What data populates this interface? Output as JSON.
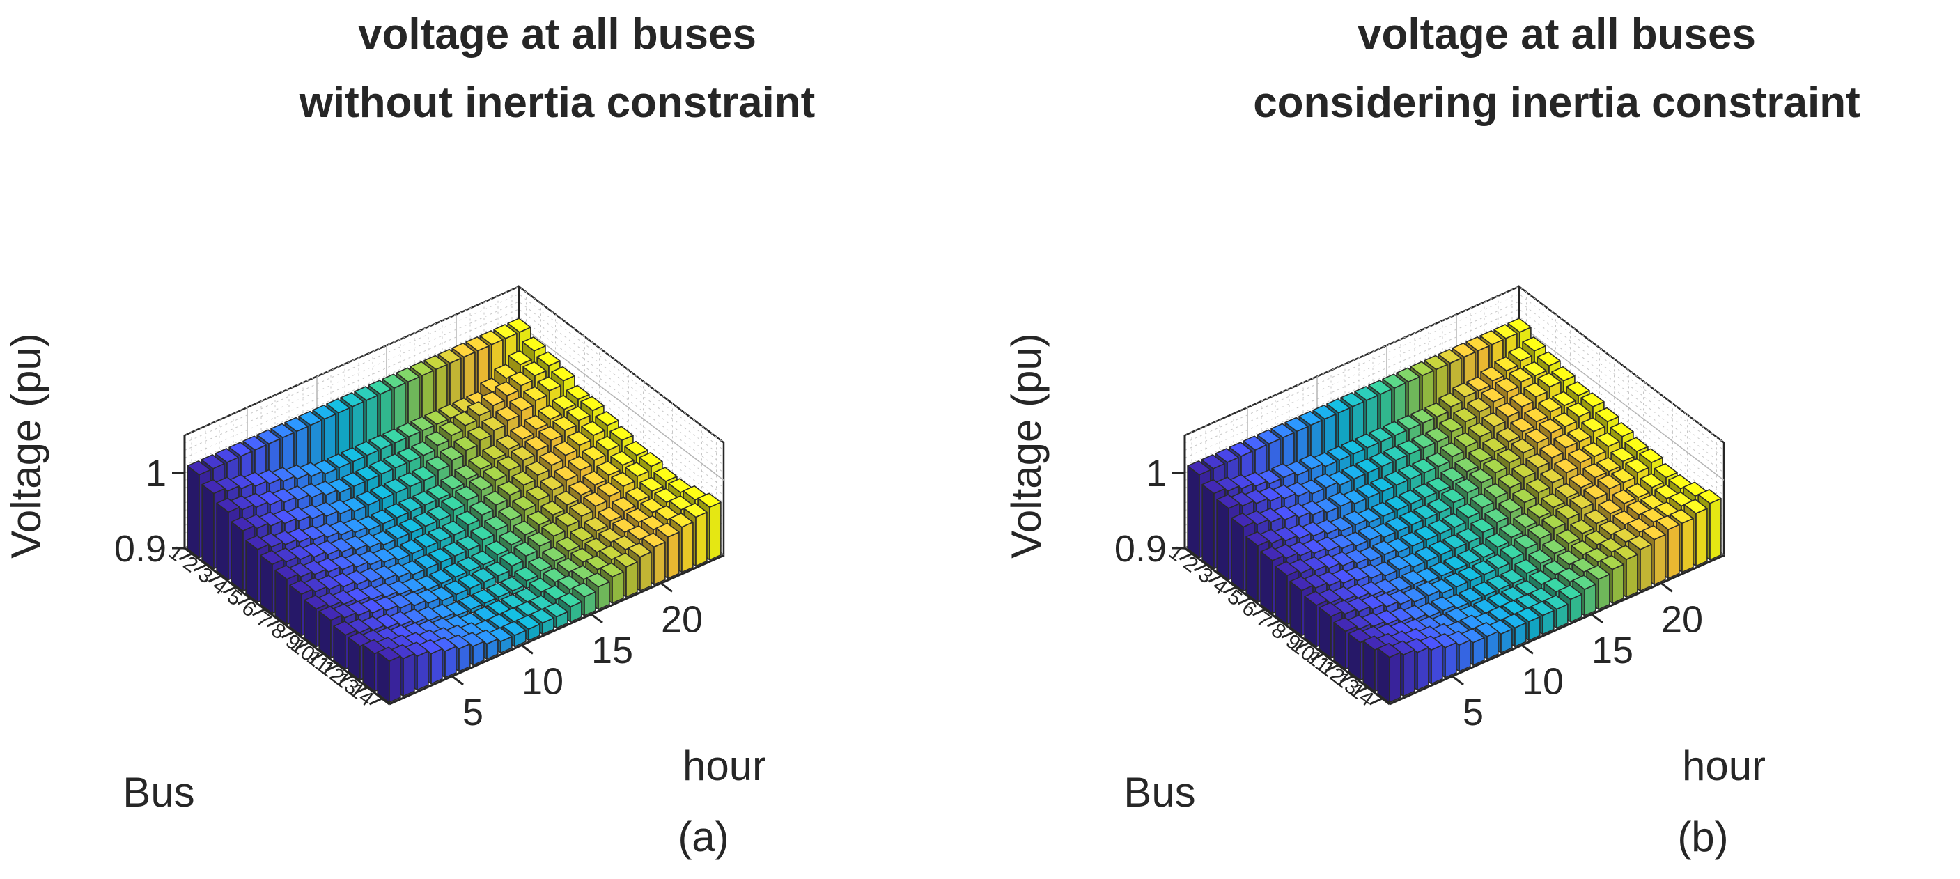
{
  "chart_data": [
    {
      "type": "bar3",
      "title": [
        "voltage at all buses",
        "without inertia constraint"
      ],
      "caption": "(a)",
      "xlabel": "hour",
      "ylabel": "Bus",
      "zlabel": "Voltage (pu)",
      "hours": [
        1,
        2,
        3,
        4,
        5,
        6,
        7,
        8,
        9,
        10,
        11,
        12,
        13,
        14,
        15,
        16,
        17,
        18,
        19,
        20,
        21,
        22,
        23,
        24
      ],
      "buses": [
        1,
        2,
        3,
        4,
        5,
        6,
        7,
        8,
        9,
        10,
        11,
        12,
        13,
        14
      ],
      "x_ticks": [
        5,
        10,
        15,
        20
      ],
      "z_ticks": [
        0.9,
        1
      ],
      "z_tick_labels": [
        "0.9",
        "1"
      ],
      "bus_tick_labels": [
        "1",
        "2",
        "3",
        "4",
        "5",
        "6",
        "7",
        "8",
        "9",
        "10",
        "11",
        "12",
        "13",
        "14"
      ],
      "zlim": [
        0.9,
        1.05
      ],
      "colormap": "parula (by hour)",
      "voltage": [
        [
          1.01,
          1.01,
          1.01,
          1.01,
          1.01,
          1.01,
          1.01,
          1.01,
          1.01,
          1.01,
          1.01,
          1.01,
          1.01,
          1.01,
          1.01,
          1.01,
          1.01,
          1.01,
          1.01,
          1.01,
          1.01,
          1.01,
          1.01,
          1.01
        ],
        [
          1.0,
          0.995,
          0.99,
          0.985,
          0.98,
          0.975,
          0.97,
          0.965,
          0.96,
          0.96,
          0.96,
          0.96,
          0.96,
          0.96,
          0.96,
          0.96,
          0.96,
          0.96,
          0.96,
          0.96,
          0.97,
          0.98,
          0.99,
          1.0
        ],
        [
          0.99,
          0.985,
          0.98,
          0.975,
          0.97,
          0.965,
          0.96,
          0.955,
          0.95,
          0.95,
          0.95,
          0.95,
          0.95,
          0.95,
          0.95,
          0.955,
          0.96,
          0.965,
          0.97,
          0.975,
          0.98,
          0.985,
          0.99,
          0.995
        ],
        [
          0.98,
          0.975,
          0.97,
          0.965,
          0.96,
          0.955,
          0.95,
          0.945,
          0.94,
          0.94,
          0.94,
          0.94,
          0.94,
          0.94,
          0.945,
          0.95,
          0.955,
          0.96,
          0.965,
          0.97,
          0.975,
          0.98,
          0.985,
          0.99
        ],
        [
          0.97,
          0.965,
          0.96,
          0.955,
          0.95,
          0.945,
          0.94,
          0.935,
          0.93,
          0.93,
          0.93,
          0.93,
          0.93,
          0.93,
          0.935,
          0.94,
          0.945,
          0.95,
          0.955,
          0.96,
          0.965,
          0.97,
          0.975,
          0.98
        ],
        [
          0.965,
          0.96,
          0.955,
          0.95,
          0.945,
          0.94,
          0.935,
          0.93,
          0.925,
          0.925,
          0.925,
          0.925,
          0.925,
          0.93,
          0.935,
          0.94,
          0.945,
          0.95,
          0.955,
          0.96,
          0.965,
          0.97,
          0.975,
          0.98
        ],
        [
          0.96,
          0.955,
          0.95,
          0.945,
          0.94,
          0.935,
          0.93,
          0.925,
          0.92,
          0.92,
          0.92,
          0.92,
          0.92,
          0.925,
          0.93,
          0.935,
          0.94,
          0.945,
          0.95,
          0.955,
          0.96,
          0.965,
          0.97,
          0.975
        ],
        [
          0.955,
          0.95,
          0.945,
          0.94,
          0.935,
          0.93,
          0.925,
          0.92,
          0.915,
          0.915,
          0.915,
          0.915,
          0.915,
          0.92,
          0.925,
          0.93,
          0.935,
          0.94,
          0.945,
          0.95,
          0.955,
          0.96,
          0.965,
          0.97
        ],
        [
          0.95,
          0.945,
          0.94,
          0.935,
          0.93,
          0.925,
          0.92,
          0.915,
          0.91,
          0.91,
          0.91,
          0.91,
          0.91,
          0.915,
          0.92,
          0.925,
          0.93,
          0.935,
          0.94,
          0.945,
          0.95,
          0.955,
          0.96,
          0.965
        ],
        [
          0.95,
          0.945,
          0.94,
          0.935,
          0.93,
          0.925,
          0.92,
          0.915,
          0.91,
          0.91,
          0.91,
          0.91,
          0.91,
          0.915,
          0.92,
          0.925,
          0.93,
          0.935,
          0.94,
          0.945,
          0.95,
          0.955,
          0.96,
          0.965
        ],
        [
          0.945,
          0.94,
          0.935,
          0.93,
          0.925,
          0.92,
          0.915,
          0.91,
          0.905,
          0.905,
          0.905,
          0.905,
          0.905,
          0.91,
          0.915,
          0.92,
          0.925,
          0.93,
          0.935,
          0.94,
          0.945,
          0.95,
          0.955,
          0.96
        ],
        [
          0.945,
          0.94,
          0.935,
          0.93,
          0.925,
          0.92,
          0.915,
          0.91,
          0.905,
          0.905,
          0.905,
          0.905,
          0.905,
          0.91,
          0.915,
          0.92,
          0.925,
          0.93,
          0.935,
          0.94,
          0.945,
          0.95,
          0.955,
          0.96
        ],
        [
          0.95,
          0.945,
          0.94,
          0.935,
          0.93,
          0.925,
          0.92,
          0.915,
          0.91,
          0.91,
          0.91,
          0.91,
          0.91,
          0.915,
          0.92,
          0.925,
          0.93,
          0.935,
          0.94,
          0.945,
          0.95,
          0.955,
          0.96,
          0.965
        ],
        [
          0.955,
          0.95,
          0.945,
          0.94,
          0.935,
          0.93,
          0.925,
          0.92,
          0.915,
          0.915,
          0.915,
          0.915,
          0.915,
          0.92,
          0.925,
          0.93,
          0.935,
          0.94,
          0.945,
          0.95,
          0.955,
          0.96,
          0.965,
          0.97
        ]
      ]
    },
    {
      "type": "bar3",
      "title": [
        "voltage at all buses",
        "considering inertia constraint"
      ],
      "caption": "(b)",
      "xlabel": "hour",
      "ylabel": "Bus",
      "zlabel": "Voltage (pu)",
      "hours": [
        1,
        2,
        3,
        4,
        5,
        6,
        7,
        8,
        9,
        10,
        11,
        12,
        13,
        14,
        15,
        16,
        17,
        18,
        19,
        20,
        21,
        22,
        23,
        24
      ],
      "buses": [
        1,
        2,
        3,
        4,
        5,
        6,
        7,
        8,
        9,
        10,
        11,
        12,
        13,
        14
      ],
      "x_ticks": [
        5,
        10,
        15,
        20
      ],
      "z_ticks": [
        0.9,
        1
      ],
      "z_tick_labels": [
        "0.9",
        "1"
      ],
      "bus_tick_labels": [
        "1",
        "2",
        "3",
        "4",
        "5",
        "6",
        "7",
        "8",
        "9",
        "10",
        "11",
        "12",
        "13",
        "14"
      ],
      "zlim": [
        0.9,
        1.05
      ],
      "colormap": "parula (by hour)",
      "voltage": [
        [
          1.01,
          1.01,
          1.01,
          1.01,
          1.01,
          1.01,
          1.01,
          1.01,
          1.01,
          1.01,
          1.01,
          1.01,
          1.01,
          1.01,
          1.01,
          1.01,
          1.01,
          1.01,
          1.01,
          1.01,
          1.01,
          1.01,
          1.01,
          1.01
        ],
        [
          1.0,
          0.995,
          0.99,
          0.985,
          0.98,
          0.98,
          0.975,
          0.975,
          0.97,
          0.97,
          0.97,
          0.97,
          0.97,
          0.97,
          0.97,
          0.97,
          0.97,
          0.975,
          0.98,
          0.98,
          0.985,
          0.99,
          0.995,
          1.0
        ],
        [
          0.995,
          0.99,
          0.985,
          0.98,
          0.975,
          0.97,
          0.965,
          0.965,
          0.96,
          0.96,
          0.96,
          0.96,
          0.96,
          0.96,
          0.96,
          0.96,
          0.965,
          0.97,
          0.975,
          0.98,
          0.985,
          0.99,
          0.99,
          0.995
        ],
        [
          0.985,
          0.98,
          0.975,
          0.97,
          0.965,
          0.96,
          0.955,
          0.955,
          0.95,
          0.95,
          0.95,
          0.95,
          0.95,
          0.95,
          0.95,
          0.955,
          0.96,
          0.965,
          0.97,
          0.975,
          0.98,
          0.985,
          0.99,
          0.99
        ],
        [
          0.975,
          0.97,
          0.965,
          0.96,
          0.955,
          0.95,
          0.945,
          0.945,
          0.94,
          0.94,
          0.94,
          0.94,
          0.94,
          0.94,
          0.945,
          0.95,
          0.955,
          0.96,
          0.965,
          0.97,
          0.975,
          0.98,
          0.98,
          0.985
        ],
        [
          0.97,
          0.965,
          0.96,
          0.955,
          0.95,
          0.945,
          0.94,
          0.94,
          0.935,
          0.935,
          0.935,
          0.935,
          0.935,
          0.94,
          0.945,
          0.95,
          0.955,
          0.96,
          0.965,
          0.97,
          0.975,
          0.975,
          0.98,
          0.985
        ],
        [
          0.965,
          0.96,
          0.955,
          0.95,
          0.945,
          0.94,
          0.935,
          0.935,
          0.93,
          0.93,
          0.93,
          0.93,
          0.93,
          0.935,
          0.94,
          0.945,
          0.95,
          0.955,
          0.96,
          0.965,
          0.97,
          0.97,
          0.975,
          0.98
        ],
        [
          0.96,
          0.955,
          0.95,
          0.945,
          0.94,
          0.935,
          0.93,
          0.93,
          0.925,
          0.925,
          0.925,
          0.925,
          0.925,
          0.93,
          0.935,
          0.94,
          0.945,
          0.95,
          0.955,
          0.96,
          0.965,
          0.965,
          0.97,
          0.975
        ],
        [
          0.955,
          0.95,
          0.945,
          0.94,
          0.935,
          0.93,
          0.925,
          0.925,
          0.92,
          0.92,
          0.92,
          0.92,
          0.92,
          0.925,
          0.93,
          0.935,
          0.94,
          0.945,
          0.95,
          0.955,
          0.96,
          0.96,
          0.965,
          0.97
        ],
        [
          0.955,
          0.95,
          0.945,
          0.94,
          0.935,
          0.93,
          0.925,
          0.925,
          0.92,
          0.92,
          0.92,
          0.92,
          0.92,
          0.925,
          0.93,
          0.935,
          0.94,
          0.945,
          0.95,
          0.955,
          0.96,
          0.96,
          0.965,
          0.97
        ],
        [
          0.95,
          0.945,
          0.94,
          0.935,
          0.93,
          0.925,
          0.92,
          0.92,
          0.915,
          0.915,
          0.915,
          0.915,
          0.915,
          0.92,
          0.925,
          0.93,
          0.935,
          0.94,
          0.945,
          0.95,
          0.955,
          0.955,
          0.96,
          0.965
        ],
        [
          0.95,
          0.945,
          0.94,
          0.935,
          0.93,
          0.925,
          0.92,
          0.92,
          0.915,
          0.915,
          0.915,
          0.915,
          0.915,
          0.92,
          0.925,
          0.93,
          0.935,
          0.94,
          0.945,
          0.95,
          0.955,
          0.955,
          0.96,
          0.965
        ],
        [
          0.955,
          0.95,
          0.945,
          0.94,
          0.935,
          0.93,
          0.925,
          0.925,
          0.92,
          0.92,
          0.92,
          0.92,
          0.92,
          0.925,
          0.93,
          0.935,
          0.94,
          0.945,
          0.95,
          0.955,
          0.96,
          0.96,
          0.965,
          0.97
        ],
        [
          0.96,
          0.955,
          0.95,
          0.945,
          0.94,
          0.935,
          0.93,
          0.93,
          0.925,
          0.925,
          0.925,
          0.925,
          0.925,
          0.93,
          0.935,
          0.94,
          0.945,
          0.95,
          0.955,
          0.96,
          0.965,
          0.965,
          0.97,
          0.975
        ]
      ]
    }
  ]
}
